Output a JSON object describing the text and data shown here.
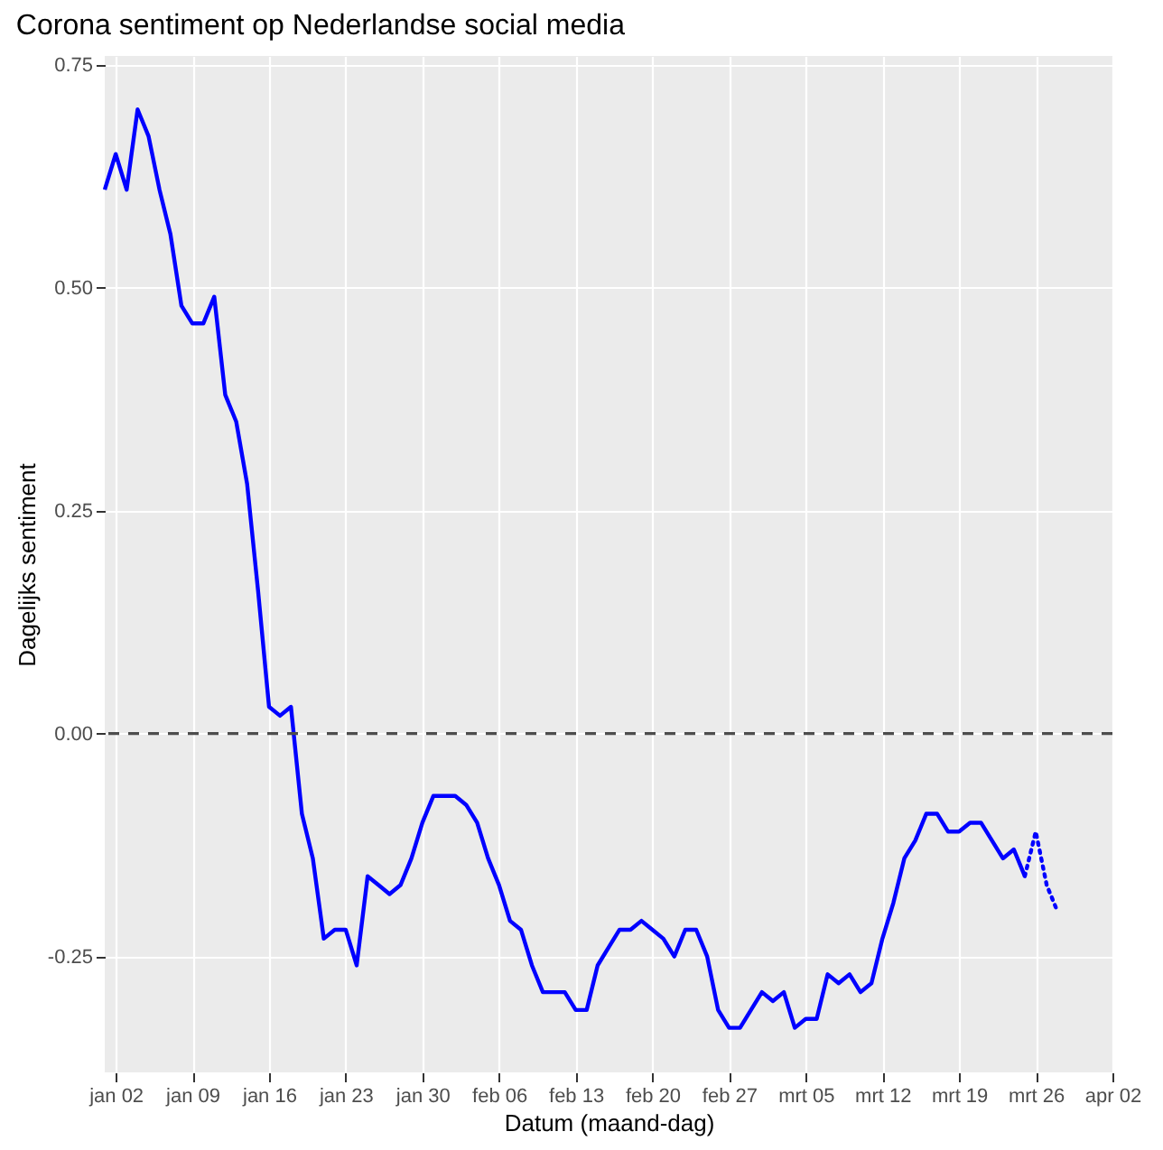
{
  "chart_data": {
    "type": "line",
    "title": "Corona sentiment op Nederlandse social media",
    "xlabel": "Datum (maand-dag)",
    "ylabel": "Dagelijks sentiment",
    "x": [
      "--01-01",
      "--01-02",
      "--01-03",
      "--01-04",
      "--01-05",
      "--01-06",
      "--01-07",
      "--01-08",
      "--01-09",
      "--01-10",
      "--01-11",
      "--01-12",
      "--01-13",
      "--01-14",
      "--01-15",
      "--01-16",
      "--01-17",
      "--01-18",
      "--01-19",
      "--01-20",
      "--01-21",
      "--01-22",
      "--01-23",
      "--01-24",
      "--01-25",
      "--01-26",
      "--01-27",
      "--01-28",
      "--01-29",
      "--01-30",
      "--01-31",
      "--02-01",
      "--02-02",
      "--02-03",
      "--02-04",
      "--02-05",
      "--02-06",
      "--02-07",
      "--02-08",
      "--02-09",
      "--02-10",
      "--02-11",
      "--02-12",
      "--02-13",
      "--02-14",
      "--02-15",
      "--02-16",
      "--02-17",
      "--02-18",
      "--02-19",
      "--02-20",
      "--02-21",
      "--02-22",
      "--02-23",
      "--02-24",
      "--02-25",
      "--02-26",
      "--02-27",
      "--02-28",
      "--02-29",
      "--03-01",
      "--03-02",
      "--03-03",
      "--03-04",
      "--03-05",
      "--03-06",
      "--03-07",
      "--03-08",
      "--03-09",
      "--03-10",
      "--03-11",
      "--03-12",
      "--03-13",
      "--03-14",
      "--03-15",
      "--03-16",
      "--03-17",
      "--03-18",
      "--03-19",
      "--03-20",
      "--03-21",
      "--03-22",
      "--03-23",
      "--03-24",
      "--03-25"
    ],
    "series": [
      {
        "color": "#0000ff",
        "line_style": "solid",
        "values": [
          0.61,
          0.65,
          0.61,
          0.7,
          0.67,
          0.61,
          0.56,
          0.48,
          0.46,
          0.46,
          0.49,
          0.38,
          0.35,
          0.28,
          0.16,
          0.03,
          0.02,
          0.03,
          -0.09,
          -0.14,
          -0.23,
          -0.22,
          -0.22,
          -0.26,
          -0.16,
          -0.17,
          -0.18,
          -0.17,
          -0.14,
          -0.1,
          -0.07,
          -0.07,
          -0.07,
          -0.08,
          -0.1,
          -0.14,
          -0.17,
          -0.21,
          -0.22,
          -0.26,
          -0.29,
          -0.29,
          -0.29,
          -0.31,
          -0.31,
          -0.26,
          -0.24,
          -0.22,
          -0.22,
          -0.21,
          -0.22,
          -0.23,
          -0.25,
          -0.22,
          -0.22,
          -0.25,
          -0.31,
          -0.33,
          -0.33,
          -0.31,
          -0.29,
          -0.3,
          -0.29,
          -0.33,
          -0.32,
          -0.32,
          -0.27,
          -0.28,
          -0.27,
          -0.29,
          -0.28,
          -0.23,
          -0.19,
          -0.14,
          -0.12,
          -0.09,
          -0.09,
          -0.11,
          -0.11,
          -0.1,
          -0.1,
          -0.12,
          -0.14,
          -0.13,
          -0.16
        ]
      },
      {
        "color": "#0000ff",
        "line_style": "dotted",
        "x": [
          "--03-25",
          "--03-26",
          "--03-27",
          "--03-28"
        ],
        "values": [
          -0.16,
          -0.11,
          -0.17,
          -0.2
        ]
      }
    ],
    "xlim": [
      "--01-01",
      "--04-02"
    ],
    "xticks": [
      {
        "value": "--01-02",
        "label": "jan 02"
      },
      {
        "value": "--01-09",
        "label": "jan 09"
      },
      {
        "value": "--01-16",
        "label": "jan 16"
      },
      {
        "value": "--01-23",
        "label": "jan 23"
      },
      {
        "value": "--01-30",
        "label": "jan 30"
      },
      {
        "value": "--02-06",
        "label": "feb 06"
      },
      {
        "value": "--02-13",
        "label": "feb 13"
      },
      {
        "value": "--02-20",
        "label": "feb 20"
      },
      {
        "value": "--02-27",
        "label": "feb 27"
      },
      {
        "value": "--03-05",
        "label": "mrt 05"
      },
      {
        "value": "--03-12",
        "label": "mrt 12"
      },
      {
        "value": "--03-19",
        "label": "mrt 19"
      },
      {
        "value": "--03-26",
        "label": "mrt 26"
      },
      {
        "value": "--04-02",
        "label": "apr 02"
      }
    ],
    "ylim": [
      -0.38,
      0.76
    ],
    "yticks": [
      -0.25,
      {
        "value": 0,
        "label": "0.00"
      },
      0.25,
      {
        "value": 0.5,
        "label": "0.50"
      },
      0.75
    ],
    "ref_lines": [
      {
        "axis": "y",
        "value": 0,
        "color": "#4d4d4d",
        "line_style": "dashed"
      }
    ],
    "grid": true
  }
}
